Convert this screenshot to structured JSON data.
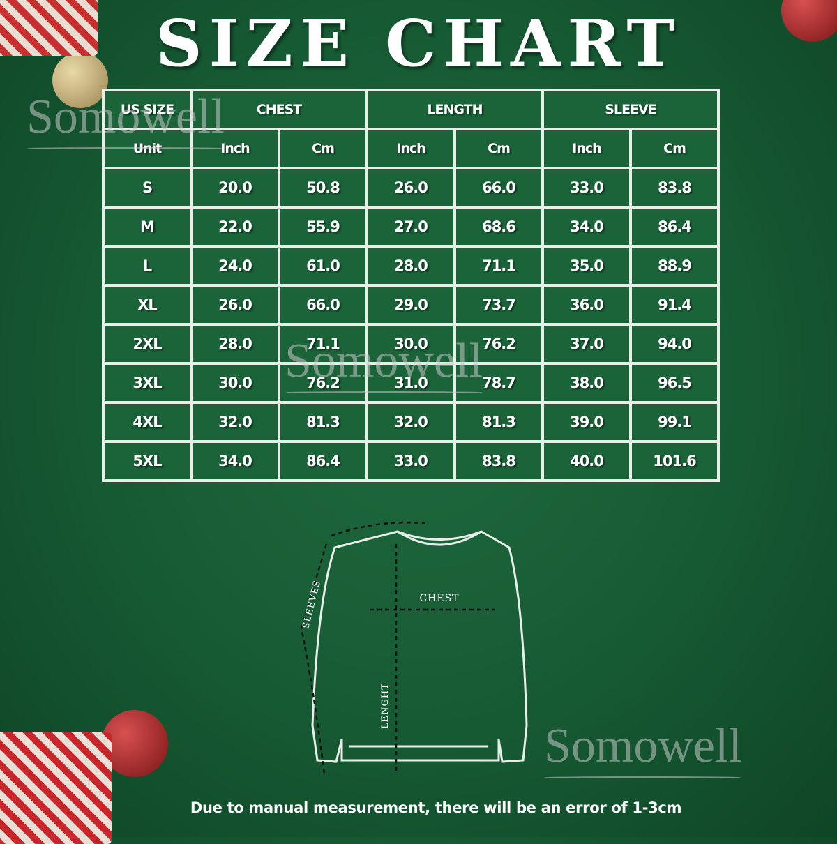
{
  "title": "SIZE CHART",
  "watermark": "Somowell",
  "table": {
    "group_headers": [
      "US SIZE",
      "CHEST",
      "LENGTH",
      "SLEEVE"
    ],
    "unit_row": [
      "Unit",
      "Inch",
      "Cm",
      "Inch",
      "Cm",
      "Inch",
      "Cm"
    ],
    "rows": [
      [
        "S",
        "20.0",
        "50.8",
        "26.0",
        "66.0",
        "33.0",
        "83.8"
      ],
      [
        "M",
        "22.0",
        "55.9",
        "27.0",
        "68.6",
        "34.0",
        "86.4"
      ],
      [
        "L",
        "24.0",
        "61.0",
        "28.0",
        "71.1",
        "35.0",
        "88.9"
      ],
      [
        "XL",
        "26.0",
        "66.0",
        "29.0",
        "73.7",
        "36.0",
        "91.4"
      ],
      [
        "2XL",
        "28.0",
        "71.1",
        "30.0",
        "76.2",
        "37.0",
        "94.0"
      ],
      [
        "3XL",
        "30.0",
        "76.2",
        "31.0",
        "78.7",
        "38.0",
        "96.5"
      ],
      [
        "4XL",
        "32.0",
        "81.3",
        "32.0",
        "81.3",
        "39.0",
        "99.1"
      ],
      [
        "5XL",
        "34.0",
        "86.4",
        "33.0",
        "83.8",
        "40.0",
        "101.6"
      ]
    ]
  },
  "diagram": {
    "chest_label": "CHEST",
    "length_label": "LENGHT",
    "sleeves_label": "SLEEVES"
  },
  "note": "Due to manual measurement, there will be an error of 1-3cm",
  "colors": {
    "background": "#165a33",
    "cell": "#1b6339",
    "grid": "#e8efe9"
  }
}
